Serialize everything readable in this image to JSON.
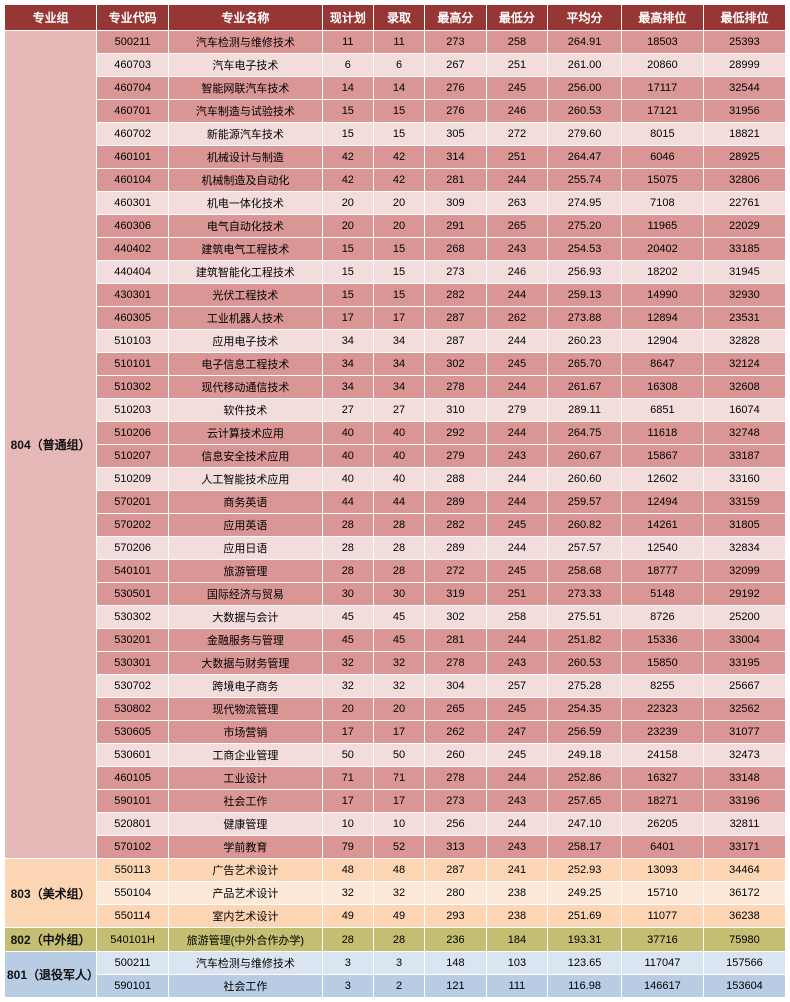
{
  "headers": [
    "专业组",
    "专业代码",
    "专业名称",
    "现计划",
    "录取",
    "最高分",
    "最低分",
    "平均分",
    "最高排位",
    "最低排位"
  ],
  "columnClasses": [
    "col-group",
    "col-code",
    "col-name",
    "col-plan",
    "col-admit",
    "col-max",
    "col-min",
    "col-avg",
    "col-hrank",
    "col-lrank"
  ],
  "colors": {
    "header_bg": "#963735",
    "header_fg": "#ffffff",
    "border": "#ffffff"
  },
  "groups": [
    {
      "label": "804（普通组）",
      "groupCellBg": "#e6b8b7",
      "rows": [
        {
          "code": "500211",
          "name": "汽车检测与维修技术",
          "plan": "11",
          "admit": "11",
          "max": "273",
          "min": "258",
          "avg": "264.91",
          "hrank": "18503",
          "lrank": "25393",
          "bg": "#da9695"
        },
        {
          "code": "460703",
          "name": "汽车电子技术",
          "plan": "6",
          "admit": "6",
          "max": "267",
          "min": "251",
          "avg": "261.00",
          "hrank": "20860",
          "lrank": "28999",
          "bg": "#f2dddc"
        },
        {
          "code": "460704",
          "name": "智能网联汽车技术",
          "plan": "14",
          "admit": "14",
          "max": "276",
          "min": "245",
          "avg": "256.00",
          "hrank": "17117",
          "lrank": "32544",
          "bg": "#da9695"
        },
        {
          "code": "460701",
          "name": "汽车制造与试验技术",
          "plan": "15",
          "admit": "15",
          "max": "276",
          "min": "246",
          "avg": "260.53",
          "hrank": "17121",
          "lrank": "31956",
          "bg": "#da9695"
        },
        {
          "code": "460702",
          "name": "新能源汽车技术",
          "plan": "15",
          "admit": "15",
          "max": "305",
          "min": "272",
          "avg": "279.60",
          "hrank": "8015",
          "lrank": "18821",
          "bg": "#f2dddc"
        },
        {
          "code": "460101",
          "name": "机械设计与制造",
          "plan": "42",
          "admit": "42",
          "max": "314",
          "min": "251",
          "avg": "264.47",
          "hrank": "6046",
          "lrank": "28925",
          "bg": "#da9695"
        },
        {
          "code": "460104",
          "name": "机械制造及自动化",
          "plan": "42",
          "admit": "42",
          "max": "281",
          "min": "244",
          "avg": "255.74",
          "hrank": "15075",
          "lrank": "32806",
          "bg": "#da9695"
        },
        {
          "code": "460301",
          "name": "机电一体化技术",
          "plan": "20",
          "admit": "20",
          "max": "309",
          "min": "263",
          "avg": "274.95",
          "hrank": "7108",
          "lrank": "22761",
          "bg": "#f2dddc"
        },
        {
          "code": "460306",
          "name": "电气自动化技术",
          "plan": "20",
          "admit": "20",
          "max": "291",
          "min": "265",
          "avg": "275.20",
          "hrank": "11965",
          "lrank": "22029",
          "bg": "#da9695"
        },
        {
          "code": "440402",
          "name": "建筑电气工程技术",
          "plan": "15",
          "admit": "15",
          "max": "268",
          "min": "243",
          "avg": "254.53",
          "hrank": "20402",
          "lrank": "33185",
          "bg": "#da9695"
        },
        {
          "code": "440404",
          "name": "建筑智能化工程技术",
          "plan": "15",
          "admit": "15",
          "max": "273",
          "min": "246",
          "avg": "256.93",
          "hrank": "18202",
          "lrank": "31945",
          "bg": "#f2dddc"
        },
        {
          "code": "430301",
          "name": "光伏工程技术",
          "plan": "15",
          "admit": "15",
          "max": "282",
          "min": "244",
          "avg": "259.13",
          "hrank": "14990",
          "lrank": "32930",
          "bg": "#da9695"
        },
        {
          "code": "460305",
          "name": "工业机器人技术",
          "plan": "17",
          "admit": "17",
          "max": "287",
          "min": "262",
          "avg": "273.88",
          "hrank": "12894",
          "lrank": "23531",
          "bg": "#da9695"
        },
        {
          "code": "510103",
          "name": "应用电子技术",
          "plan": "34",
          "admit": "34",
          "max": "287",
          "min": "244",
          "avg": "260.23",
          "hrank": "12904",
          "lrank": "32828",
          "bg": "#f2dddc"
        },
        {
          "code": "510101",
          "name": "电子信息工程技术",
          "plan": "34",
          "admit": "34",
          "max": "302",
          "min": "245",
          "avg": "265.70",
          "hrank": "8647",
          "lrank": "32124",
          "bg": "#da9695"
        },
        {
          "code": "510302",
          "name": "现代移动通信技术",
          "plan": "34",
          "admit": "34",
          "max": "278",
          "min": "244",
          "avg": "261.67",
          "hrank": "16308",
          "lrank": "32608",
          "bg": "#da9695"
        },
        {
          "code": "510203",
          "name": "软件技术",
          "plan": "27",
          "admit": "27",
          "max": "310",
          "min": "279",
          "avg": "289.11",
          "hrank": "6851",
          "lrank": "16074",
          "bg": "#f2dddc"
        },
        {
          "code": "510206",
          "name": "云计算技术应用",
          "plan": "40",
          "admit": "40",
          "max": "292",
          "min": "244",
          "avg": "264.75",
          "hrank": "11618",
          "lrank": "32748",
          "bg": "#da9695"
        },
        {
          "code": "510207",
          "name": "信息安全技术应用",
          "plan": "40",
          "admit": "40",
          "max": "279",
          "min": "243",
          "avg": "260.67",
          "hrank": "15867",
          "lrank": "33187",
          "bg": "#da9695"
        },
        {
          "code": "510209",
          "name": "人工智能技术应用",
          "plan": "40",
          "admit": "40",
          "max": "288",
          "min": "244",
          "avg": "260.60",
          "hrank": "12602",
          "lrank": "33160",
          "bg": "#f2dddc"
        },
        {
          "code": "570201",
          "name": "商务英语",
          "plan": "44",
          "admit": "44",
          "max": "289",
          "min": "244",
          "avg": "259.57",
          "hrank": "12494",
          "lrank": "33159",
          "bg": "#da9695"
        },
        {
          "code": "570202",
          "name": "应用英语",
          "plan": "28",
          "admit": "28",
          "max": "282",
          "min": "245",
          "avg": "260.82",
          "hrank": "14261",
          "lrank": "31805",
          "bg": "#da9695"
        },
        {
          "code": "570206",
          "name": "应用日语",
          "plan": "28",
          "admit": "28",
          "max": "289",
          "min": "244",
          "avg": "257.57",
          "hrank": "12540",
          "lrank": "32834",
          "bg": "#f2dddc"
        },
        {
          "code": "540101",
          "name": "旅游管理",
          "plan": "28",
          "admit": "28",
          "max": "272",
          "min": "245",
          "avg": "258.68",
          "hrank": "18777",
          "lrank": "32099",
          "bg": "#da9695"
        },
        {
          "code": "530501",
          "name": "国际经济与贸易",
          "plan": "30",
          "admit": "30",
          "max": "319",
          "min": "251",
          "avg": "273.33",
          "hrank": "5148",
          "lrank": "29192",
          "bg": "#da9695"
        },
        {
          "code": "530302",
          "name": "大数据与会计",
          "plan": "45",
          "admit": "45",
          "max": "302",
          "min": "258",
          "avg": "275.51",
          "hrank": "8726",
          "lrank": "25200",
          "bg": "#f2dddc"
        },
        {
          "code": "530201",
          "name": "金融服务与管理",
          "plan": "45",
          "admit": "45",
          "max": "281",
          "min": "244",
          "avg": "251.82",
          "hrank": "15336",
          "lrank": "33004",
          "bg": "#da9695"
        },
        {
          "code": "530301",
          "name": "大数据与财务管理",
          "plan": "32",
          "admit": "32",
          "max": "278",
          "min": "243",
          "avg": "260.53",
          "hrank": "15850",
          "lrank": "33195",
          "bg": "#da9695"
        },
        {
          "code": "530702",
          "name": "跨境电子商务",
          "plan": "32",
          "admit": "32",
          "max": "304",
          "min": "257",
          "avg": "275.28",
          "hrank": "8255",
          "lrank": "25667",
          "bg": "#f2dddc"
        },
        {
          "code": "530802",
          "name": "现代物流管理",
          "plan": "20",
          "admit": "20",
          "max": "265",
          "min": "245",
          "avg": "254.35",
          "hrank": "22323",
          "lrank": "32562",
          "bg": "#da9695"
        },
        {
          "code": "530605",
          "name": "市场营销",
          "plan": "17",
          "admit": "17",
          "max": "262",
          "min": "247",
          "avg": "256.59",
          "hrank": "23239",
          "lrank": "31077",
          "bg": "#da9695"
        },
        {
          "code": "530601",
          "name": "工商企业管理",
          "plan": "50",
          "admit": "50",
          "max": "260",
          "min": "245",
          "avg": "249.18",
          "hrank": "24158",
          "lrank": "32473",
          "bg": "#f2dddc"
        },
        {
          "code": "460105",
          "name": "工业设计",
          "plan": "71",
          "admit": "71",
          "max": "278",
          "min": "244",
          "avg": "252.86",
          "hrank": "16327",
          "lrank": "33148",
          "bg": "#da9695"
        },
        {
          "code": "590101",
          "name": "社会工作",
          "plan": "17",
          "admit": "17",
          "max": "273",
          "min": "243",
          "avg": "257.65",
          "hrank": "18271",
          "lrank": "33196",
          "bg": "#da9695"
        },
        {
          "code": "520801",
          "name": "健康管理",
          "plan": "10",
          "admit": "10",
          "max": "256",
          "min": "244",
          "avg": "247.10",
          "hrank": "26205",
          "lrank": "32811",
          "bg": "#f2dddc"
        },
        {
          "code": "570102",
          "name": "学前教育",
          "plan": "79",
          "admit": "52",
          "max": "313",
          "min": "243",
          "avg": "258.17",
          "hrank": "6401",
          "lrank": "33171",
          "bg": "#da9695"
        }
      ]
    },
    {
      "label": "803（美术组）",
      "groupCellBg": "#fcd5b4",
      "rows": [
        {
          "code": "550113",
          "name": "广告艺术设计",
          "plan": "48",
          "admit": "48",
          "max": "287",
          "min": "241",
          "avg": "252.93",
          "hrank": "13093",
          "lrank": "34464",
          "bg": "#fcd5b4"
        },
        {
          "code": "550104",
          "name": "产品艺术设计",
          "plan": "32",
          "admit": "32",
          "max": "280",
          "min": "238",
          "avg": "249.25",
          "hrank": "15710",
          "lrank": "36172",
          "bg": "#fde9d9"
        },
        {
          "code": "550114",
          "name": "室内艺术设计",
          "plan": "49",
          "admit": "49",
          "max": "293",
          "min": "238",
          "avg": "251.69",
          "hrank": "11077",
          "lrank": "36238",
          "bg": "#fcd5b4"
        }
      ]
    },
    {
      "label": "802（中外组）",
      "groupCellBg": "#c3be71",
      "rows": [
        {
          "code": "540101H",
          "name": "旅游管理(中外合作办学)",
          "plan": "28",
          "admit": "28",
          "max": "236",
          "min": "184",
          "avg": "193.31",
          "hrank": "37716",
          "lrank": "75980",
          "bg": "#c3be71"
        }
      ]
    },
    {
      "label": "801（退役军人）",
      "groupCellBg": "#b8cce4",
      "rows": [
        {
          "code": "500211",
          "name": "汽车检测与维修技术",
          "plan": "3",
          "admit": "3",
          "max": "148",
          "min": "103",
          "avg": "123.65",
          "hrank": "117047",
          "lrank": "157566",
          "bg": "#dbe5f1"
        },
        {
          "code": "590101",
          "name": "社会工作",
          "plan": "3",
          "admit": "2",
          "max": "121",
          "min": "111",
          "avg": "116.98",
          "hrank": "146617",
          "lrank": "153604",
          "bg": "#b8cce4"
        }
      ]
    }
  ]
}
